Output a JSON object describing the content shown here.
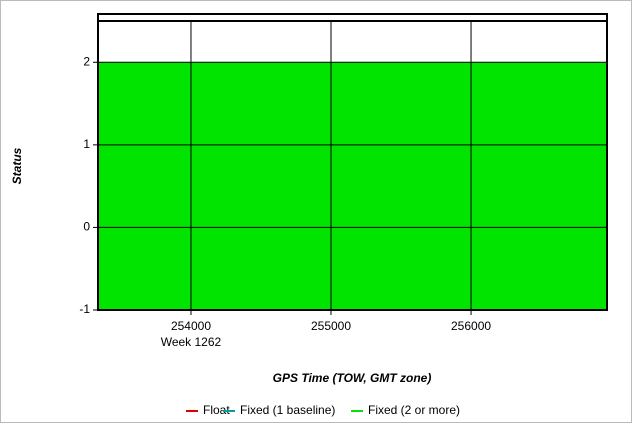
{
  "chart_data": {
    "type": "area",
    "y_label": "Status",
    "x_label": "GPS Time (TOW, GMT zone)",
    "x_annotation": "Week 1262",
    "x": [
      253336,
      256971
    ],
    "series": [
      {
        "name": "Float",
        "color": "#e00000",
        "values": [
          null,
          null
        ]
      },
      {
        "name": "Fixed (1 baseline)",
        "color": "#00a0a0",
        "values": [
          null,
          null
        ]
      },
      {
        "name": "Fixed (2 or more)",
        "color": "#00e400",
        "values": [
          2,
          2
        ]
      }
    ],
    "xlim": [
      253336,
      256971
    ],
    "xticks": [
      254000,
      255000,
      256000
    ],
    "ylim": [
      -1,
      2.5
    ],
    "yticks": [
      -1,
      0,
      1,
      2
    ],
    "grid": true
  }
}
